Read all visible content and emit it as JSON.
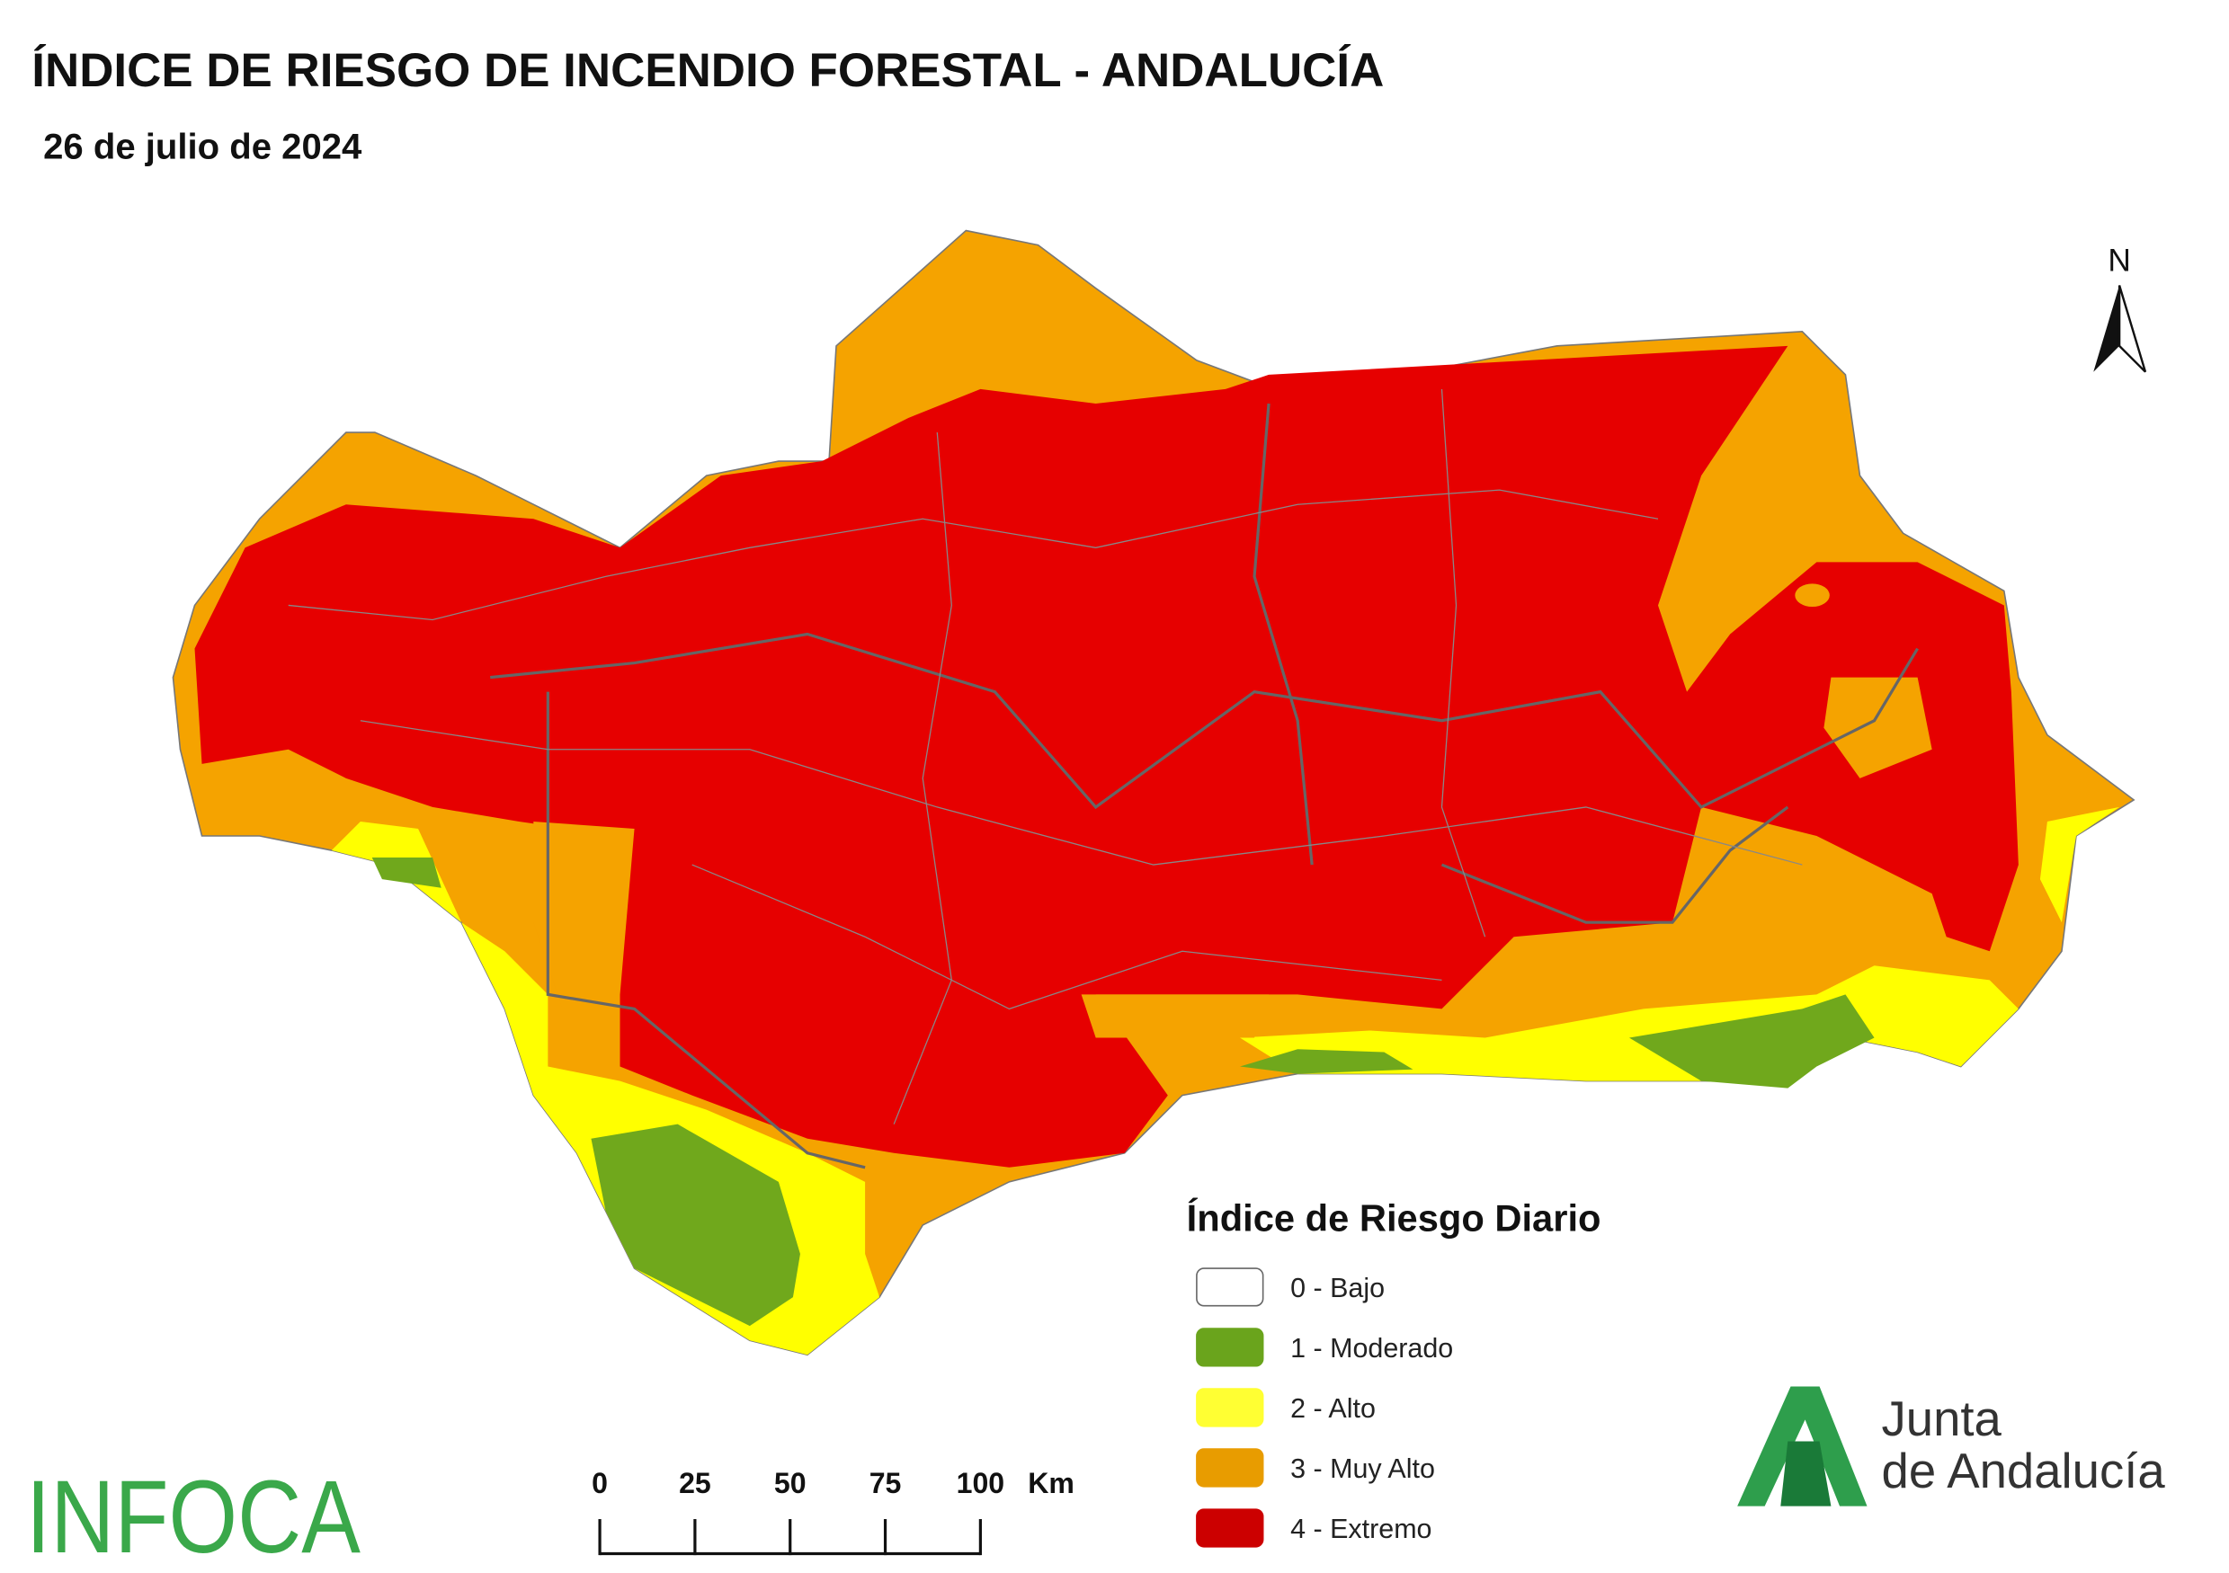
{
  "header": {
    "title": "ÍNDICE DE RIESGO DE INCENDIO FORESTAL - ANDALUCÍA",
    "subtitle": "26 de julio de 2024"
  },
  "north": "N",
  "legend": {
    "title": "Índice de Riesgo Diario",
    "items": [
      {
        "label": "0 - Bajo",
        "color": "#ffffff"
      },
      {
        "label": "1 - Moderado",
        "color": "#6aa41c"
      },
      {
        "label": "2 - Alto",
        "color": "#ffff33"
      },
      {
        "label": "3 - Muy Alto",
        "color": "#e89c00"
      },
      {
        "label": "4 - Extremo",
        "color": "#cc0000"
      }
    ]
  },
  "scale_bar": {
    "ticks": [
      0,
      25,
      50,
      75,
      100
    ],
    "unit": "Km"
  },
  "logos": {
    "left": "INFOCA",
    "right_line1": "Junta",
    "right_line2": "de Andalucía"
  }
}
